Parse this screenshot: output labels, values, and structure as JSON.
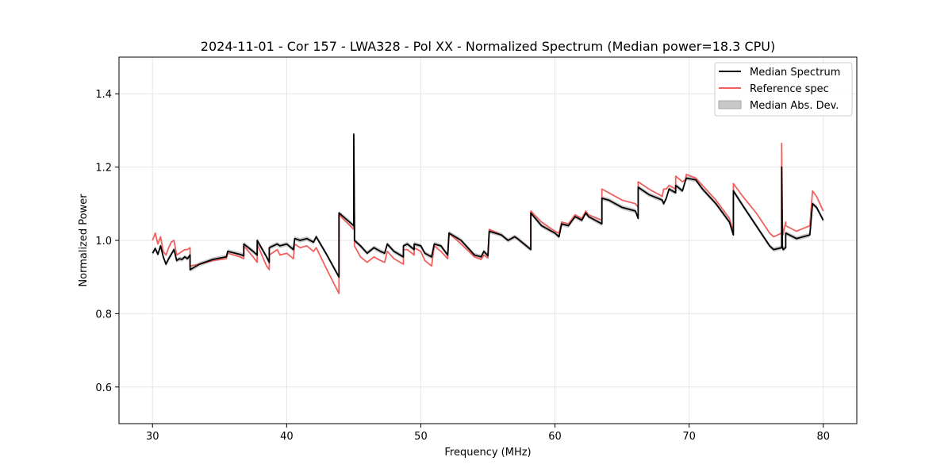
{
  "chart_data": {
    "type": "line",
    "title": "2024-11-01 - Cor 157 - LWA328 - Pol XX - Normalized Spectrum (Median power=18.3 CPU)",
    "xlabel": "Frequency (MHz)",
    "ylabel": "Normalized Power",
    "xlim": [
      27.5,
      82.5
    ],
    "ylim": [
      0.5,
      1.5
    ],
    "xticks": [
      30,
      40,
      50,
      60,
      70,
      80
    ],
    "yticks": [
      0.6,
      0.8,
      1.0,
      1.2,
      1.4
    ],
    "xtick_labels": [
      "30",
      "40",
      "50",
      "60",
      "70",
      "80"
    ],
    "ytick_labels": [
      "0.6",
      "0.8",
      "1.0",
      "1.2",
      "1.4"
    ],
    "grid": true,
    "legend_position": "top-right",
    "legend": [
      "Median Spectrum",
      "Reference spec",
      "Median Abs. Dev."
    ],
    "colors": {
      "median": "#000000",
      "reference": "#f0605f",
      "mad": "#b0b0b0"
    },
    "mad_halfwidth": 0.006,
    "series": [
      {
        "name": "Median Spectrum",
        "x": [
          30.0,
          30.2,
          30.4,
          30.6,
          30.8,
          31.0,
          31.2,
          31.4,
          31.6,
          31.8,
          32.0,
          32.2,
          32.4,
          32.6,
          32.8,
          32.8,
          33.5,
          34.5,
          35.5,
          35.6,
          36.5,
          36.8,
          36.8,
          37.5,
          37.8,
          37.8,
          38.5,
          38.7,
          38.7,
          39.3,
          39.5,
          40.0,
          40.5,
          40.6,
          41.0,
          41.5,
          42.0,
          42.2,
          43.0,
          43.9,
          43.9,
          45.0,
          45.0,
          45.05,
          45.05,
          45.5,
          46.0,
          46.5,
          47.0,
          47.3,
          47.5,
          48.0,
          48.7,
          48.7,
          49.0,
          49.5,
          49.5,
          50.0,
          50.3,
          50.8,
          51.0,
          51.5,
          52.0,
          52.1,
          53.0,
          54.0,
          54.5,
          54.7,
          55.0,
          55.1,
          56.0,
          56.5,
          57.0,
          57.2,
          58.2,
          58.2,
          59.0,
          60.0,
          60.3,
          60.5,
          61.0,
          61.5,
          62.0,
          62.3,
          62.5,
          63.5,
          63.5,
          64.0,
          65.0,
          66.0,
          66.2,
          66.2,
          67.0,
          68.0,
          68.1,
          68.3,
          68.5,
          69.0,
          69.0,
          69.5,
          69.7,
          69.8,
          70.5,
          71.0,
          72.0,
          73.0,
          73.3,
          73.3,
          74.0,
          75.0,
          76.0,
          76.3,
          76.9,
          76.9,
          76.95,
          77.0,
          77.2,
          77.2,
          78.0,
          79.0,
          79.2,
          79.5,
          80.0
        ],
        "y": [
          0.965,
          0.978,
          0.962,
          0.985,
          0.955,
          0.935,
          0.95,
          0.962,
          0.975,
          0.945,
          0.95,
          0.948,
          0.955,
          0.95,
          0.96,
          0.92,
          0.935,
          0.948,
          0.955,
          0.97,
          0.962,
          0.958,
          0.99,
          0.97,
          0.96,
          1.0,
          0.955,
          0.94,
          0.98,
          0.99,
          0.985,
          0.99,
          0.975,
          1.005,
          1.0,
          1.005,
          0.995,
          1.01,
          0.96,
          0.9,
          1.075,
          1.04,
          1.29,
          1.04,
          1.0,
          0.985,
          0.965,
          0.98,
          0.97,
          0.965,
          0.99,
          0.97,
          0.955,
          0.985,
          0.99,
          0.975,
          0.99,
          0.985,
          0.965,
          0.955,
          0.99,
          0.985,
          0.96,
          1.02,
          1.0,
          0.96,
          0.955,
          0.97,
          0.958,
          1.025,
          1.015,
          1.0,
          1.01,
          1.005,
          0.975,
          1.075,
          1.04,
          1.02,
          1.01,
          1.045,
          1.04,
          1.065,
          1.055,
          1.075,
          1.065,
          1.045,
          1.115,
          1.11,
          1.09,
          1.08,
          1.06,
          1.145,
          1.125,
          1.11,
          1.1,
          1.115,
          1.14,
          1.13,
          1.15,
          1.135,
          1.16,
          1.17,
          1.165,
          1.14,
          1.1,
          1.05,
          1.015,
          1.135,
          1.095,
          1.04,
          0.985,
          0.975,
          0.98,
          1.2,
          0.985,
          0.975,
          0.98,
          1.02,
          1.005,
          1.015,
          1.1,
          1.09,
          1.055
        ]
      },
      {
        "name": "Reference spec",
        "x": [
          30.0,
          30.2,
          30.4,
          30.6,
          30.8,
          31.0,
          31.2,
          31.4,
          31.6,
          31.8,
          32.0,
          32.2,
          32.4,
          32.6,
          32.8,
          32.8,
          33.5,
          34.5,
          35.5,
          35.6,
          36.5,
          36.8,
          36.8,
          37.5,
          37.8,
          37.8,
          38.5,
          38.7,
          38.7,
          39.3,
          39.5,
          40.0,
          40.5,
          40.6,
          41.0,
          41.5,
          42.0,
          42.2,
          43.0,
          43.9,
          43.9,
          45.0,
          45.0,
          45.05,
          45.05,
          45.5,
          46.0,
          46.5,
          47.0,
          47.3,
          47.5,
          48.0,
          48.7,
          48.7,
          49.0,
          49.5,
          49.5,
          50.0,
          50.3,
          50.8,
          51.0,
          51.5,
          52.0,
          52.1,
          53.0,
          54.0,
          54.5,
          54.7,
          55.0,
          55.1,
          56.0,
          56.5,
          57.0,
          57.2,
          58.2,
          58.2,
          59.0,
          60.0,
          60.3,
          60.5,
          61.0,
          61.5,
          62.0,
          62.3,
          62.5,
          63.5,
          63.5,
          64.0,
          65.0,
          66.0,
          66.2,
          66.2,
          67.0,
          68.0,
          68.1,
          68.3,
          68.5,
          69.0,
          69.0,
          69.5,
          69.7,
          69.8,
          70.5,
          71.0,
          72.0,
          73.0,
          73.3,
          73.3,
          74.0,
          75.0,
          76.0,
          76.3,
          76.9,
          76.9,
          76.95,
          77.0,
          77.2,
          77.2,
          78.0,
          79.0,
          79.2,
          79.5,
          80.0
        ],
        "y": [
          1.0,
          1.02,
          0.99,
          1.01,
          0.97,
          0.96,
          0.98,
          0.995,
          1.0,
          0.96,
          0.965,
          0.97,
          0.975,
          0.975,
          0.98,
          0.93,
          0.935,
          0.945,
          0.95,
          0.965,
          0.955,
          0.95,
          0.985,
          0.955,
          0.94,
          0.99,
          0.93,
          0.92,
          0.96,
          0.975,
          0.96,
          0.965,
          0.95,
          0.99,
          0.98,
          0.985,
          0.97,
          0.98,
          0.92,
          0.855,
          1.07,
          1.03,
          1.28,
          1.03,
          0.985,
          0.955,
          0.94,
          0.955,
          0.945,
          0.94,
          0.97,
          0.95,
          0.935,
          0.975,
          0.975,
          0.96,
          0.98,
          0.97,
          0.945,
          0.93,
          0.985,
          0.97,
          0.95,
          1.02,
          0.99,
          0.955,
          0.948,
          0.96,
          0.952,
          1.03,
          1.015,
          1.0,
          1.01,
          1.005,
          0.975,
          1.08,
          1.05,
          1.025,
          1.02,
          1.05,
          1.045,
          1.07,
          1.06,
          1.08,
          1.07,
          1.055,
          1.14,
          1.13,
          1.11,
          1.1,
          1.09,
          1.16,
          1.14,
          1.12,
          1.14,
          1.14,
          1.15,
          1.14,
          1.175,
          1.16,
          1.165,
          1.18,
          1.17,
          1.15,
          1.11,
          1.06,
          1.025,
          1.155,
          1.12,
          1.075,
          1.02,
          1.01,
          1.02,
          1.265,
          1.05,
          1.015,
          1.05,
          1.04,
          1.025,
          1.04,
          1.135,
          1.12,
          1.08
        ]
      }
    ]
  }
}
